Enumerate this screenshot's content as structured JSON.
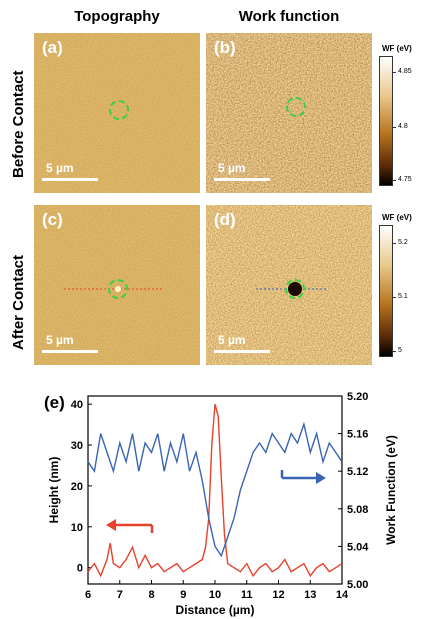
{
  "columns": {
    "topography": "Topography",
    "work_function": "Work function"
  },
  "rows": {
    "before": "Before Contact",
    "after": "After Contact"
  },
  "panels": {
    "a": {
      "label": "(a)",
      "scale": "5 µm"
    },
    "b": {
      "label": "(b)",
      "scale": "5 µm"
    },
    "c": {
      "label": "(c)",
      "scale": "5 µm"
    },
    "d": {
      "label": "(d)",
      "scale": "5 µm"
    }
  },
  "colorbars": {
    "before": {
      "title": "WF (eV)",
      "ticks": [
        "4.85",
        "4.8",
        "4.75"
      ]
    },
    "after": {
      "title": "WF (eV)",
      "ticks": [
        "5.2",
        "5.1",
        "5"
      ]
    }
  },
  "colors": {
    "height_series": "#e8412b",
    "wf_series": "#3a64b4",
    "marker": "#3dcf45",
    "afm_base": "#b8741e"
  },
  "chart_data": {
    "type": "line",
    "panel_label": "(e)",
    "xlabel": "Distance (µm)",
    "ylabel_left": "Height (nm)",
    "ylabel_right": "Work Function (eV)",
    "xlim": [
      6,
      14
    ],
    "ylim_left": [
      -4,
      42
    ],
    "ylim_right": [
      5.0,
      5.2
    ],
    "x_ticks": [
      "6",
      "7",
      "8",
      "9",
      "10",
      "11",
      "12",
      "13",
      "14"
    ],
    "y_ticks_left": [
      "0",
      "10",
      "20",
      "30",
      "40"
    ],
    "y_ticks_right": [
      "5.00",
      "5.04",
      "5.08",
      "5.12",
      "5.16",
      "5.20"
    ],
    "grid": false,
    "series": [
      {
        "axis": "left",
        "arrow": "left",
        "x": [
          6.0,
          6.2,
          6.4,
          6.6,
          6.7,
          6.8,
          7.0,
          7.2,
          7.4,
          7.6,
          7.8,
          8.0,
          8.2,
          8.4,
          8.6,
          8.8,
          9.0,
          9.2,
          9.4,
          9.6,
          9.7,
          9.8,
          9.9,
          10.0,
          10.1,
          10.2,
          10.3,
          10.4,
          10.6,
          10.8,
          11.0,
          11.2,
          11.4,
          11.6,
          11.8,
          12.0,
          12.2,
          12.4,
          12.6,
          12.8,
          13.0,
          13.2,
          13.4,
          13.6,
          13.8,
          14.0
        ],
        "values": [
          -1,
          1,
          -2,
          2,
          6,
          1,
          0,
          2,
          5,
          0,
          3,
          0,
          1,
          -1,
          0,
          1,
          -1,
          0,
          1,
          2,
          5,
          12,
          30,
          40,
          37,
          22,
          8,
          1,
          0,
          -1,
          1,
          -2,
          0,
          1,
          -1,
          0,
          2,
          -1,
          0,
          1,
          -2,
          0,
          1,
          -1,
          0,
          1
        ]
      },
      {
        "axis": "right",
        "arrow": "right",
        "x": [
          6.0,
          6.2,
          6.4,
          6.6,
          6.8,
          7.0,
          7.2,
          7.4,
          7.6,
          7.8,
          8.0,
          8.2,
          8.4,
          8.6,
          8.8,
          9.0,
          9.2,
          9.4,
          9.6,
          9.8,
          10.0,
          10.2,
          10.4,
          10.6,
          10.8,
          11.0,
          11.2,
          11.4,
          11.6,
          11.8,
          12.0,
          12.2,
          12.4,
          12.6,
          12.8,
          13.0,
          13.2,
          13.4,
          13.6,
          13.8,
          14.0
        ],
        "values": [
          5.13,
          5.12,
          5.16,
          5.14,
          5.12,
          5.15,
          5.13,
          5.16,
          5.12,
          5.15,
          5.14,
          5.16,
          5.12,
          5.15,
          5.13,
          5.16,
          5.12,
          5.14,
          5.11,
          5.07,
          5.04,
          5.03,
          5.05,
          5.07,
          5.1,
          5.12,
          5.14,
          5.15,
          5.14,
          5.16,
          5.15,
          5.14,
          5.16,
          5.15,
          5.17,
          5.14,
          5.16,
          5.13,
          5.15,
          5.14,
          5.13
        ]
      }
    ]
  }
}
